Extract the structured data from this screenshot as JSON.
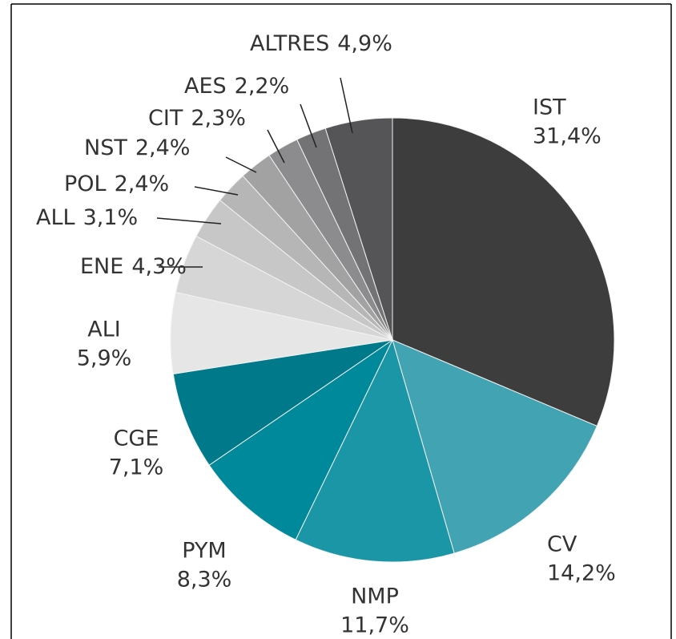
{
  "chart_data": {
    "type": "pie",
    "categories": [
      "IST",
      "CV",
      "NMP",
      "PYM",
      "CGE",
      "ALI",
      "ENE",
      "ALL",
      "POL",
      "NST",
      "CIT",
      "AES",
      "ALTRES"
    ],
    "values": [
      31.4,
      14.2,
      11.7,
      8.3,
      7.1,
      5.9,
      4.3,
      3.1,
      2.4,
      2.4,
      2.3,
      2.2,
      4.9
    ],
    "value_labels": [
      "31,4%",
      "14,2%",
      "11,7%",
      "8,3%",
      "7,1%",
      "5,9%",
      "4,3%",
      "3,1%",
      "2,4%",
      "2,4%",
      "2,3%",
      "2,2%",
      "4,9%"
    ],
    "colors": [
      "#3d3d3d",
      "#42a3b3",
      "#1a96a6",
      "#00899a",
      "#007a8a",
      "#e6e6e6",
      "#d6d6d7",
      "#c7c7c8",
      "#b6b6b7",
      "#a2a2a3",
      "#8c8c8e",
      "#737375",
      "#555557"
    ]
  }
}
